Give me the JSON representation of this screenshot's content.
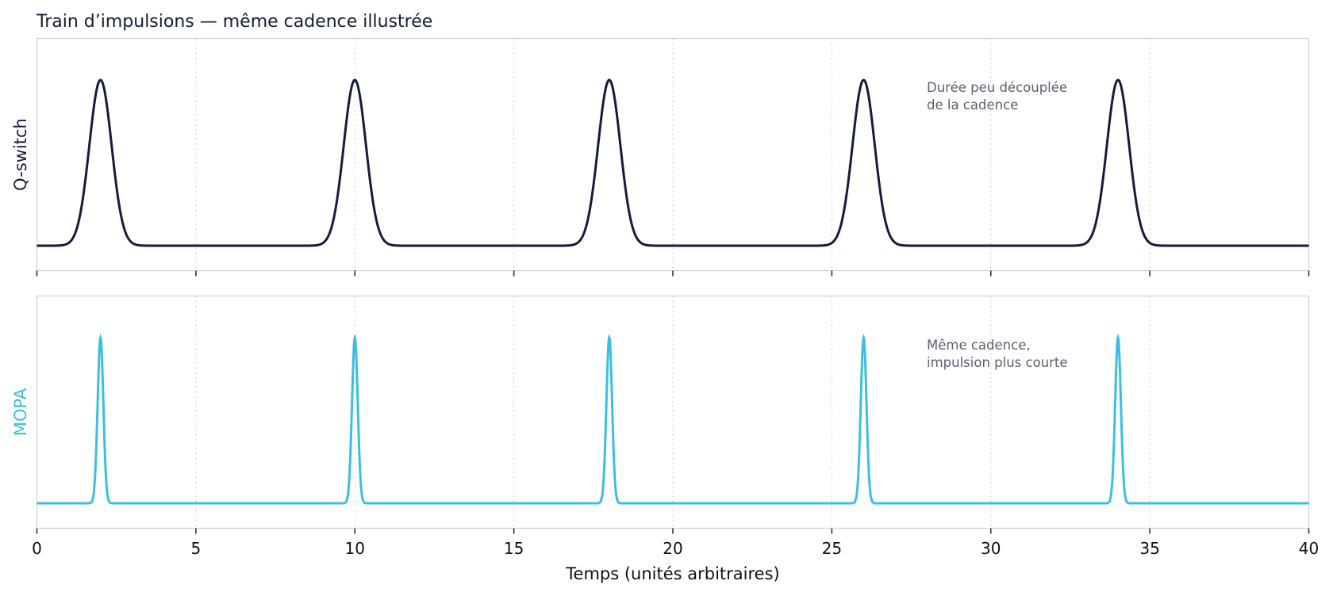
{
  "chart_data": {
    "type": "line",
    "title": "Train d’impulsions — même cadence illustrée",
    "xlabel": "Temps (unités arbitraires)",
    "xlim": [
      0,
      40
    ],
    "xticks": [
      "0",
      "5",
      "10",
      "15",
      "20",
      "25",
      "30",
      "35",
      "40"
    ],
    "grid": "vertical dotted",
    "panels": [
      {
        "ylabel": "Q-switch",
        "color": "#141c3a",
        "pulse_centers": [
          2,
          10,
          18,
          26,
          34
        ],
        "pulse_sigma": 0.35,
        "baseline": 0,
        "amplitude": 1,
        "annotation": [
          "Durée peu découplée",
          "de la cadence"
        ]
      },
      {
        "ylabel": "MOPA",
        "color": "#3bbfdf",
        "pulse_centers": [
          2,
          10,
          18,
          26,
          34
        ],
        "pulse_sigma": 0.09,
        "baseline": 0,
        "amplitude": 1,
        "annotation": [
          "Même cadence,",
          "impulsion plus courte"
        ]
      }
    ]
  }
}
